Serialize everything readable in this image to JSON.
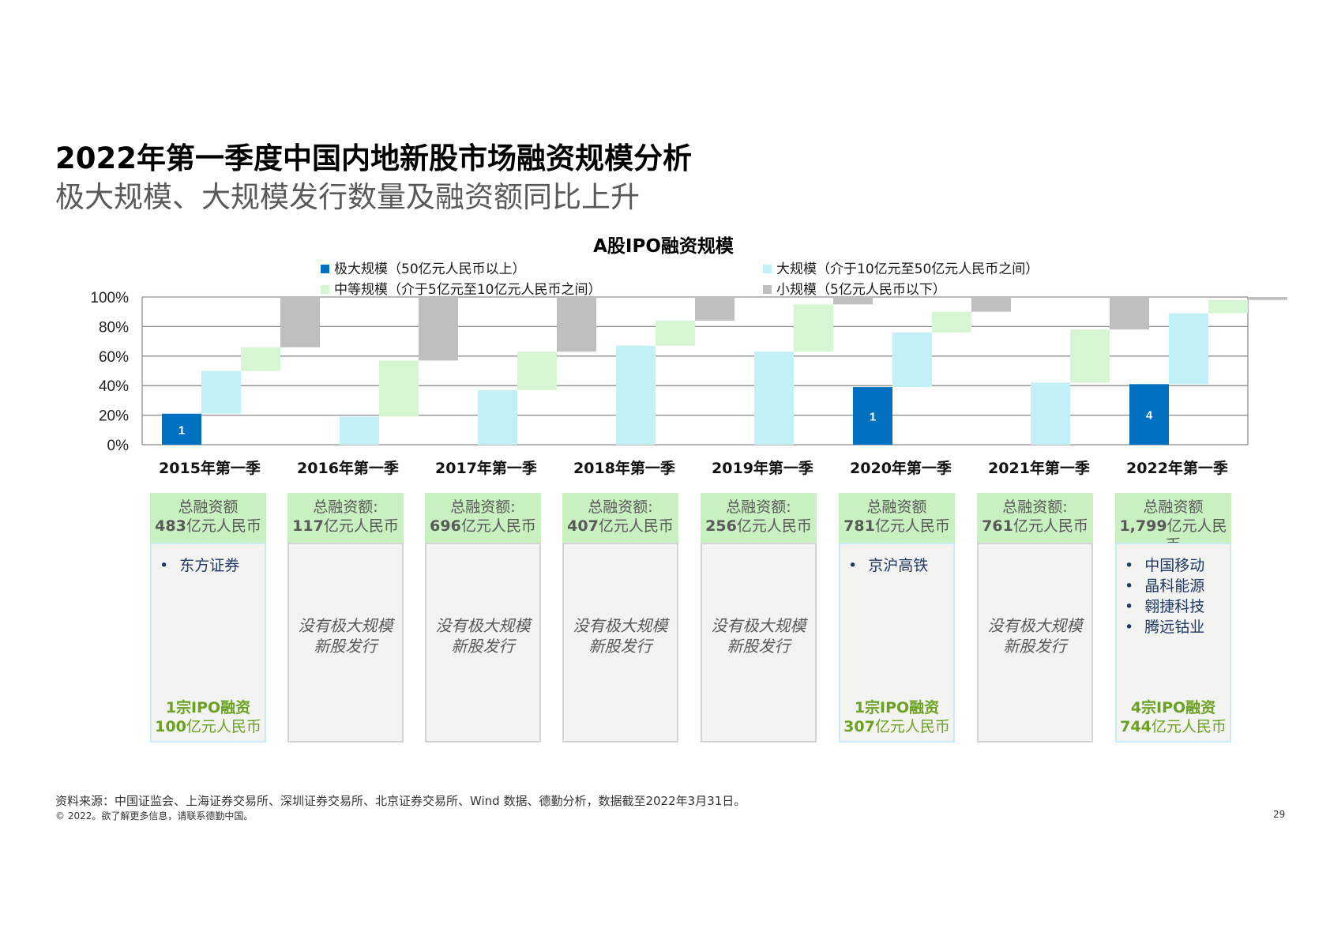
{
  "title": "2022年第一季度中国内地新股市场融资规模分析",
  "subtitle": "极大规模、大规模发行数量及融资额同比上升",
  "chart_data": {
    "type": "bar",
    "title": "A股IPO融资规模",
    "categories": [
      "2015年第一季",
      "2016年第一季",
      "2017年第一季",
      "2018年第一季",
      "2019年第一季",
      "2020年第一季",
      "2021年第一季",
      "2022年第一季"
    ],
    "ylim": [
      0,
      100
    ],
    "yticks": [
      0,
      20,
      40,
      60,
      80,
      100
    ],
    "ytick_labels": [
      "0%",
      "20%",
      "40%",
      "60%",
      "80%",
      "100%"
    ],
    "series": [
      {
        "name": "极大规模（50亿元人民币以上）",
        "color": "#0070c0",
        "values": [
          21,
          0,
          0,
          0,
          0,
          39,
          0,
          41
        ],
        "labels": [
          "1",
          "",
          "",
          "",
          "",
          "1",
          "",
          "4"
        ]
      },
      {
        "name": "大规模（介于10亿元至50亿元人民币之间）",
        "color": "#c1f0f7",
        "values": [
          29,
          19,
          37,
          67,
          63,
          37,
          42,
          48
        ]
      },
      {
        "name": "中等规模（介于5亿元至10亿元人民币之间）",
        "color": "#d6f5d3",
        "values": [
          16,
          38,
          26,
          17,
          32,
          14,
          36,
          9
        ]
      },
      {
        "name": "小规模（5亿元人民币以下）",
        "color": "#bfbfbf",
        "values": [
          34,
          43,
          37,
          16,
          5,
          10,
          22,
          2
        ]
      }
    ]
  },
  "legend": [
    {
      "label": "极大规模（50亿元人民币以上）",
      "color": "#0070c0"
    },
    {
      "label": "大规模（介于10亿元至50亿元人民币之间）",
      "color": "#c1f0f7"
    },
    {
      "label": "中等规模（介于5亿元至10亿元人民币之间）",
      "color": "#d6f5d3"
    },
    {
      "label": "小规模（5亿元人民币以下）",
      "color": "#bfbfbf"
    }
  ],
  "boxes": [
    {
      "head_label": "总融资额",
      "amount_num": "483",
      "amount_unit": "亿元人民币",
      "items": [
        "东方证券"
      ],
      "none_line1": "",
      "none_line2": "",
      "foot_line1": "1宗IPO融资",
      "foot_num": "100",
      "foot_unit": "亿元人民币"
    },
    {
      "head_label": "总融资额:",
      "amount_num": "117",
      "amount_unit": "亿元人民币",
      "items": [],
      "none_line1": "没有极大规模",
      "none_line2": "新股发行",
      "foot_line1": "",
      "foot_num": "",
      "foot_unit": ""
    },
    {
      "head_label": "总融资额:",
      "amount_num": "696",
      "amount_unit": "亿元人民币",
      "items": [],
      "none_line1": "没有极大规模",
      "none_line2": "新股发行",
      "foot_line1": "",
      "foot_num": "",
      "foot_unit": ""
    },
    {
      "head_label": "总融资额:",
      "amount_num": "407",
      "amount_unit": "亿元人民币",
      "items": [],
      "none_line1": "没有极大规模",
      "none_line2": "新股发行",
      "foot_line1": "",
      "foot_num": "",
      "foot_unit": ""
    },
    {
      "head_label": "总融资额:",
      "amount_num": "256",
      "amount_unit": "亿元人民币",
      "items": [],
      "none_line1": "没有极大规模",
      "none_line2": "新股发行",
      "foot_line1": "",
      "foot_num": "",
      "foot_unit": ""
    },
    {
      "head_label": "总融资额",
      "amount_num": "781",
      "amount_unit": "亿元人民币",
      "items": [
        "京沪高铁"
      ],
      "none_line1": "",
      "none_line2": "",
      "foot_line1": "1宗IPO融资",
      "foot_num": "307",
      "foot_unit": "亿元人民币"
    },
    {
      "head_label": "总融资额:",
      "amount_num": "761",
      "amount_unit": "亿元人民币",
      "items": [],
      "none_line1": "没有极大规模",
      "none_line2": "新股发行",
      "foot_line1": "",
      "foot_num": "",
      "foot_unit": ""
    },
    {
      "head_label": "总融资额",
      "amount_num": "1,799",
      "amount_unit": "亿元人民币",
      "items": [
        "中国移动",
        "晶科能源",
        "翱捷科技",
        "腾远钴业"
      ],
      "none_line1": "",
      "none_line2": "",
      "foot_line1": "4宗IPO融资",
      "foot_num": "744",
      "foot_unit": "亿元人民币"
    }
  ],
  "source": "资料来源：中国证监会、上海证券交易所、深圳证券交易所、北京证券交易所、Wind 数据、德勤分析，数据截至2022年3月31日。",
  "copyright": "© 2022。欲了解更多信息，请联系德勤中国。",
  "page_number": "29"
}
